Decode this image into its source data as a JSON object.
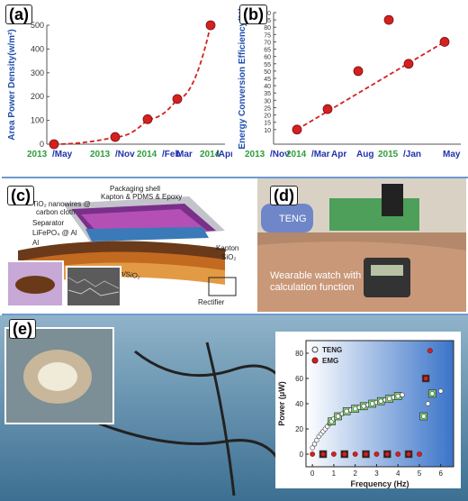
{
  "panels": {
    "a": {
      "label": "(a)"
    },
    "b": {
      "label": "(b)"
    },
    "c": {
      "label": "(c)"
    },
    "d": {
      "label": "(d)"
    },
    "e": {
      "label": "(e)"
    }
  },
  "chart_data": [
    {
      "panel": "a",
      "type": "scatter",
      "title": "",
      "xlabel": "",
      "ylabel": "Area Power Density(w/m²)",
      "ylim": [
        0,
        500
      ],
      "yticks": [
        0,
        100,
        200,
        300,
        400,
        500
      ],
      "xtick_labels": [
        {
          "text": "2013",
          "color": "#2e9e3a"
        },
        {
          "text": "/May",
          "color": "#2233aa"
        },
        {
          "text": "2013",
          "color": "#2e9e3a"
        },
        {
          "text": "/Nov",
          "color": "#2233aa"
        },
        {
          "text": "2014",
          "color": "#2e9e3a"
        },
        {
          "text": "/Feb",
          "color": "#2233aa"
        },
        {
          "text": "Mar",
          "color": "#2233aa"
        },
        {
          "text": "2014",
          "color": "#2e9e3a"
        },
        {
          "text": "/Apr",
          "color": "#2233aa"
        }
      ],
      "x": [
        0,
        1,
        2,
        3,
        4
      ],
      "values": [
        0,
        30,
        105,
        190,
        500
      ],
      "trend": "dashed exponential fit",
      "marker_color": "#d42020",
      "line_color": "#d42020",
      "grid": false
    },
    {
      "panel": "b",
      "type": "scatter",
      "title": "",
      "xlabel": "",
      "ylabel": "Energy Conversion Efficiency(%)",
      "ylim": [
        0,
        90
      ],
      "yticks": [
        10,
        15,
        20,
        25,
        30,
        35,
        40,
        45,
        50,
        55,
        60,
        65,
        70,
        75,
        80,
        85,
        90
      ],
      "xtick_labels": [
        {
          "text": "2013",
          "color": "#2e9e3a"
        },
        {
          "text": "/Nov",
          "color": "#2233aa"
        },
        {
          "text": "2014",
          "color": "#2e9e3a"
        },
        {
          "text": "/Mar",
          "color": "#2233aa"
        },
        {
          "text": "Apr",
          "color": "#2233aa"
        },
        {
          "text": "Aug",
          "color": "#2233aa"
        },
        {
          "text": "2015",
          "color": "#2e9e3a"
        },
        {
          "text": "/Jan",
          "color": "#2233aa"
        },
        {
          "text": "May",
          "color": "#2233aa"
        }
      ],
      "x": [
        0,
        1,
        2,
        3,
        4,
        5
      ],
      "values": [
        10,
        24,
        50,
        85,
        55,
        70
      ],
      "trend": "dashed linear fit",
      "marker_color": "#d42020",
      "line_color": "#d42020",
      "grid": false
    },
    {
      "panel": "e",
      "type": "scatter",
      "title": "",
      "xlabel": "Frequency (Hz)",
      "ylabel": "Power (μW)",
      "xlim": [
        -0.3,
        6.6
      ],
      "ylim": [
        -10,
        90
      ],
      "xticks": [
        0,
        1,
        2,
        3,
        4,
        5,
        6
      ],
      "yticks": [
        0,
        20,
        40,
        60,
        80
      ],
      "legend_position": "top-left",
      "series": [
        {
          "name": "TENG",
          "color": "#ffffff",
          "x": [
            0.0,
            0.1,
            0.2,
            0.3,
            0.4,
            0.5,
            0.6,
            0.7,
            0.8,
            0.9,
            1.0,
            1.2,
            1.4,
            1.6,
            1.8,
            2.0,
            2.2,
            2.4,
            2.6,
            2.8,
            3.0,
            3.2,
            3.4,
            3.6,
            3.8,
            4.0,
            4.2,
            5.2,
            5.4,
            5.6,
            6.0
          ],
          "values": [
            5,
            8,
            11,
            14,
            16,
            18,
            20,
            22,
            24,
            26,
            28,
            30,
            32,
            34,
            35,
            36,
            37,
            38,
            39,
            40,
            41,
            42,
            43,
            44,
            45,
            46,
            47,
            30,
            40,
            48,
            50
          ]
        },
        {
          "name": "EMG",
          "color": "#d42020",
          "x": [
            0.0,
            0.5,
            1.0,
            1.5,
            2.0,
            2.5,
            3.0,
            3.5,
            4.0,
            4.5,
            5.0,
            5.3,
            5.5
          ],
          "values": [
            0,
            0,
            0,
            0,
            0,
            0,
            0,
            0,
            0,
            0,
            0,
            60,
            82
          ]
        }
      ]
    }
  ],
  "photo_texts": {
    "c_packaging": "Packaging shell",
    "c_kapton": "Kapton & PDMS & Epoxy",
    "c_tio2_1": "TiO₂ nanowires @",
    "c_tio2_2": "carbon cloth",
    "c_separator": "Separator",
    "c_lifepo4": "LiFePO₄ @ Al",
    "c_al": "Al",
    "c_kapton_sio2_a": "Kapton",
    "c_kapton_sio2_b": "SiO₂",
    "c_kapton_sio2_c": "Kapton/SiO₂",
    "c_rectifier": "Rectifier",
    "d_teng": "TENG",
    "d_watch_1": "Wearable watch with",
    "d_watch_2": "calculation function"
  }
}
